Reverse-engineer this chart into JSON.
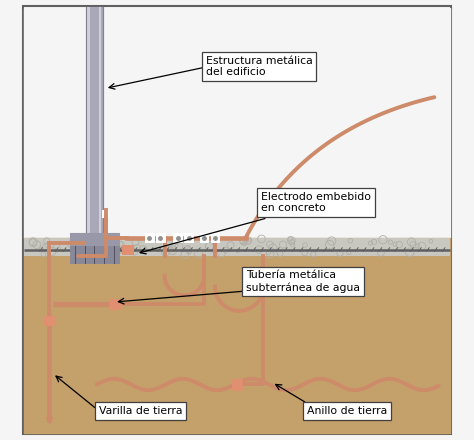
{
  "labels": {
    "estructura": "Estructura metálica\ndel edificio",
    "electrodo": "Electrodo embebido\nen concreto",
    "tuberia": "Tubería metálica\nsubterránea de agua",
    "varilla": "Varilla de tierra",
    "anillo": "Anillo de tierra"
  },
  "colors": {
    "column_fill": "#a8a8b8",
    "column_edge": "#808090",
    "column_inner": "#d0d0d8",
    "copper": "#cd8b6a",
    "copper_tube": "#c87c5a",
    "ground_fill": "#c4a06a",
    "concrete_top": "#c8c8c0",
    "concrete_gravel": "#b0b0a8",
    "concrete_stripe": "#606060",
    "sky_fill": "#f5f5f5",
    "base_plate": "#9898a8",
    "bolt_gray": "#888898",
    "box_fill": "#ffffff",
    "box_edge": "#404040",
    "border": "#606060"
  }
}
